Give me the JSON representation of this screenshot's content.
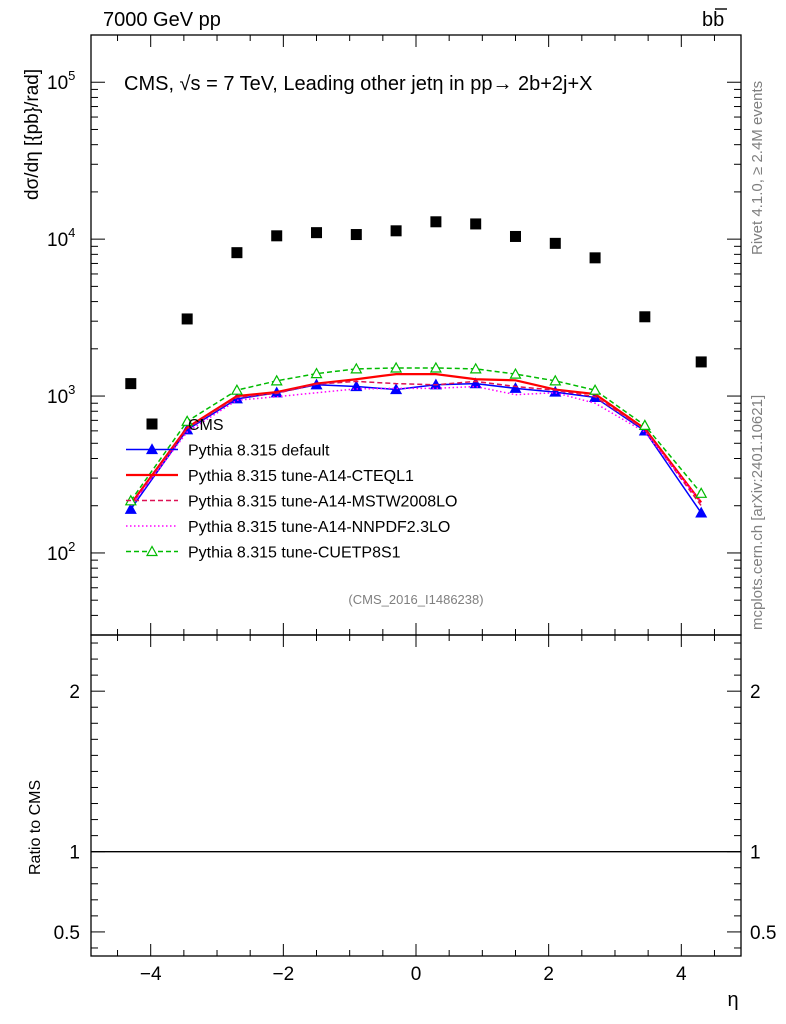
{
  "header": {
    "left": "7000 GeV pp",
    "right": "b",
    "right_bar": "b"
  },
  "side_labels": {
    "rivet": "Rivet 4.1.0, ≥ 2.4M events",
    "mcplots": "mcplots.cern.ch [arXiv:2401.10621]"
  },
  "chart_data": {
    "type": "scatter",
    "title": "CMS, √s = 7 TeV, Leading other jetη in pp→  2b+2j+X",
    "xlabel": "η",
    "ylabel": "dσ/dη [{pb}/rad]",
    "ratio_ylabel": "Ratio to CMS",
    "watermark": "(CMS_2016_I1486238)",
    "xlim": [
      -4.9,
      4.9
    ],
    "ylim": [
      30,
      200000
    ],
    "yscale": "log",
    "ratio_ylim": [
      0.35,
      2.35
    ],
    "x_ticks": [
      -4,
      -2,
      0,
      2,
      4
    ],
    "x_tick_labels": [
      "−4",
      "−2",
      "0",
      "2",
      "4"
    ],
    "y_ticks": [
      {
        "value": 100,
        "base": "10",
        "exp": "2"
      },
      {
        "value": 1000,
        "base": "10",
        "exp": "3"
      },
      {
        "value": 10000,
        "base": "10",
        "exp": "4"
      },
      {
        "value": 100000,
        "base": "10",
        "exp": "5"
      }
    ],
    "ratio_ticks": [
      {
        "value": 0.5,
        "label": "0.5"
      },
      {
        "value": 1,
        "label": "1"
      },
      {
        "value": 2,
        "label": "2"
      }
    ],
    "x": [
      -4.3,
      -3.45,
      -2.7,
      -2.1,
      -1.5,
      -0.9,
      -0.3,
      0.3,
      0.9,
      1.5,
      2.1,
      2.7,
      3.45,
      4.3
    ],
    "series": [
      {
        "name": "CMS",
        "kind": "data",
        "color": "#000000",
        "values": [
          1200,
          3100,
          8200,
          10500,
          11000,
          10700,
          11300,
          12900,
          12500,
          10400,
          9400,
          7600,
          3200,
          1650
        ]
      },
      {
        "name": "Pythia 8.315 default",
        "kind": "line",
        "color": "#0000ff",
        "dash": "",
        "marker": "triangle-filled",
        "values": [
          190,
          610,
          960,
          1050,
          1180,
          1150,
          1100,
          1180,
          1200,
          1120,
          1060,
          980,
          600,
          180
        ]
      },
      {
        "name": "Pythia 8.315 tune-A14-CTEQL1",
        "kind": "line",
        "color": "#ff0000",
        "dash": "",
        "marker": "",
        "values": [
          205,
          630,
          1000,
          1060,
          1200,
          1280,
          1380,
          1380,
          1280,
          1260,
          1100,
          1030,
          620,
          210
        ]
      },
      {
        "name": "Pythia 8.315 tune-A14-MSTW2008LO",
        "kind": "line",
        "color": "#dd1155",
        "dash": "5,3",
        "marker": "",
        "values": [
          200,
          620,
          980,
          1040,
          1190,
          1240,
          1200,
          1180,
          1240,
          1150,
          1090,
          990,
          610,
          200
        ]
      },
      {
        "name": "Pythia 8.315 tune-A14-NNPDF2.3LO",
        "kind": "line",
        "color": "#ff00ff",
        "dash": "1.5,2.5",
        "marker": "",
        "values": [
          200,
          590,
          940,
          990,
          1050,
          1110,
          1120,
          1120,
          1150,
          1020,
          1050,
          900,
          590,
          210
        ]
      },
      {
        "name": "Pythia 8.315 tune-CUETP8S1",
        "kind": "line",
        "color": "#00bb00",
        "dash": "5,3",
        "marker": "triangle-open",
        "values": [
          215,
          690,
          1090,
          1250,
          1390,
          1490,
          1510,
          1510,
          1490,
          1380,
          1250,
          1090,
          650,
          240
        ]
      }
    ]
  }
}
